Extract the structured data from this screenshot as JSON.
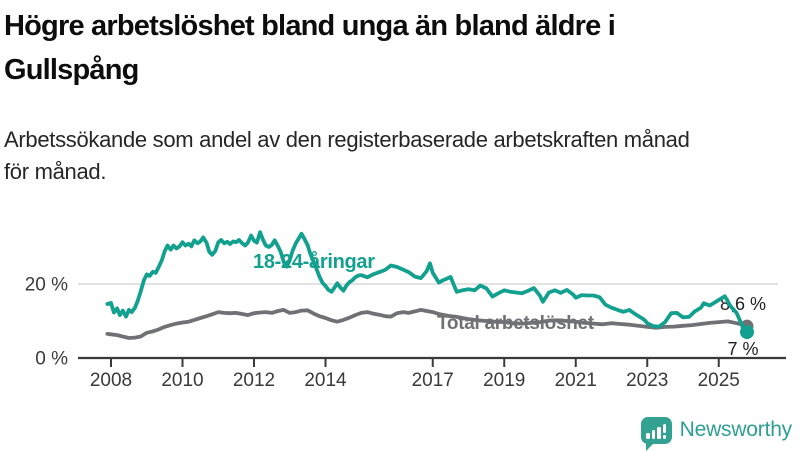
{
  "header": {
    "title": "Högre arbetslöshet bland unga än bland äldre i\nGullspång",
    "subtitle": "Arbetssökande som andel av den registerbaserade arbetskraften månad\nför månad."
  },
  "footer": {
    "brand": "Newsworthy",
    "logo_icon": "newsworthy-speech-bubble-bar-chart-icon"
  },
  "chart_data": {
    "type": "line",
    "title": "Högre arbetslöshet bland unga än bland äldre i Gullspång",
    "subtitle": "Arbetssökande som andel av den registerbaserade arbetskraften månad för månad.",
    "x_unit": "year (monthly data)",
    "xlim": [
      2007.9,
      2026.9
    ],
    "ylim": [
      0,
      36
    ],
    "grid": "horizontal-only",
    "x_ticks": [
      2008,
      2010,
      2012,
      2014,
      2017,
      2019,
      2021,
      2023,
      2025
    ],
    "y_ticks": [
      {
        "value": 0,
        "label": "0 %"
      },
      {
        "value": 20,
        "label": "20 %"
      }
    ],
    "colors": {
      "grid": "#d9d9d9",
      "axis": "#3a3a3a",
      "youth_teal": "#12a08f",
      "total_gray": "#707175",
      "brand_teal": "#33a293"
    },
    "series": [
      {
        "name": "18-24-åringar",
        "color": "#12a08f",
        "end_label": "7 %",
        "end_value": 7.0,
        "end_label_position": "below",
        "points": [
          [
            2007.9,
            14.6
          ],
          [
            2008.0,
            14.9
          ],
          [
            2008.08,
            12.3
          ],
          [
            2008.17,
            13.4
          ],
          [
            2008.25,
            11.6
          ],
          [
            2008.33,
            12.8
          ],
          [
            2008.42,
            11.2
          ],
          [
            2008.5,
            13.0
          ],
          [
            2008.58,
            12.4
          ],
          [
            2008.67,
            13.6
          ],
          [
            2008.75,
            15.5
          ],
          [
            2008.83,
            18.0
          ],
          [
            2008.92,
            21.0
          ],
          [
            2009.0,
            22.6
          ],
          [
            2009.08,
            22.2
          ],
          [
            2009.17,
            23.3
          ],
          [
            2009.25,
            23.0
          ],
          [
            2009.33,
            24.5
          ],
          [
            2009.42,
            26.4
          ],
          [
            2009.5,
            28.8
          ],
          [
            2009.58,
            30.4
          ],
          [
            2009.67,
            29.3
          ],
          [
            2009.75,
            30.4
          ],
          [
            2009.83,
            29.6
          ],
          [
            2009.92,
            30.2
          ],
          [
            2010.0,
            31.3
          ],
          [
            2010.08,
            30.4
          ],
          [
            2010.17,
            30.9
          ],
          [
            2010.25,
            30.2
          ],
          [
            2010.33,
            31.8
          ],
          [
            2010.42,
            31.0
          ],
          [
            2010.5,
            31.5
          ],
          [
            2010.58,
            32.6
          ],
          [
            2010.67,
            31.2
          ],
          [
            2010.75,
            28.7
          ],
          [
            2010.83,
            27.9
          ],
          [
            2010.92,
            29.0
          ],
          [
            2011.0,
            31.3
          ],
          [
            2011.08,
            31.9
          ],
          [
            2011.17,
            31.0
          ],
          [
            2011.25,
            31.4
          ],
          [
            2011.33,
            30.8
          ],
          [
            2011.42,
            31.5
          ],
          [
            2011.5,
            31.3
          ],
          [
            2011.58,
            31.9
          ],
          [
            2011.67,
            31.0
          ],
          [
            2011.75,
            30.4
          ],
          [
            2011.83,
            31.2
          ],
          [
            2011.92,
            33.1
          ],
          [
            2012.0,
            31.7
          ],
          [
            2012.08,
            31.2
          ],
          [
            2012.17,
            34.0
          ],
          [
            2012.25,
            32.0
          ],
          [
            2012.33,
            30.4
          ],
          [
            2012.42,
            30.0
          ],
          [
            2012.5,
            30.6
          ],
          [
            2012.58,
            31.8
          ],
          [
            2012.67,
            30.2
          ],
          [
            2012.75,
            28.6
          ],
          [
            2012.83,
            26.0
          ],
          [
            2012.92,
            24.7
          ],
          [
            2013.0,
            26.5
          ],
          [
            2013.08,
            29.0
          ],
          [
            2013.17,
            31.0
          ],
          [
            2013.25,
            32.3
          ],
          [
            2013.33,
            33.6
          ],
          [
            2013.42,
            32.0
          ],
          [
            2013.5,
            30.5
          ],
          [
            2013.58,
            28.0
          ],
          [
            2013.67,
            26.0
          ],
          [
            2013.75,
            24.0
          ],
          [
            2013.83,
            22.0
          ],
          [
            2013.92,
            20.3
          ],
          [
            2014.0,
            19.5
          ],
          [
            2014.08,
            18.4
          ],
          [
            2014.17,
            17.9
          ],
          [
            2014.25,
            19.0
          ],
          [
            2014.33,
            20.2
          ],
          [
            2014.42,
            19.0
          ],
          [
            2014.5,
            18.2
          ],
          [
            2014.58,
            19.5
          ],
          [
            2014.67,
            20.5
          ],
          [
            2014.75,
            21.0
          ],
          [
            2014.83,
            21.8
          ],
          [
            2014.92,
            22.3
          ],
          [
            2015.0,
            22.4
          ],
          [
            2015.17,
            21.8
          ],
          [
            2015.33,
            22.6
          ],
          [
            2015.5,
            23.2
          ],
          [
            2015.67,
            23.8
          ],
          [
            2015.83,
            25.0
          ],
          [
            2016.0,
            24.6
          ],
          [
            2016.17,
            23.9
          ],
          [
            2016.33,
            23.2
          ],
          [
            2016.5,
            22.0
          ],
          [
            2016.67,
            21.6
          ],
          [
            2016.83,
            23.5
          ],
          [
            2016.92,
            25.6
          ],
          [
            2017.0,
            23.0
          ],
          [
            2017.17,
            20.4
          ],
          [
            2017.33,
            21.2
          ],
          [
            2017.5,
            21.9
          ],
          [
            2017.67,
            17.9
          ],
          [
            2017.83,
            18.3
          ],
          [
            2018.0,
            18.6
          ],
          [
            2018.17,
            18.3
          ],
          [
            2018.33,
            19.6
          ],
          [
            2018.5,
            18.8
          ],
          [
            2018.67,
            16.6
          ],
          [
            2018.83,
            17.5
          ],
          [
            2019.0,
            18.3
          ],
          [
            2019.17,
            17.9
          ],
          [
            2019.33,
            17.7
          ],
          [
            2019.5,
            17.5
          ],
          [
            2019.67,
            18.2
          ],
          [
            2019.83,
            18.9
          ],
          [
            2020.0,
            16.8
          ],
          [
            2020.08,
            15.2
          ],
          [
            2020.25,
            17.7
          ],
          [
            2020.42,
            18.3
          ],
          [
            2020.58,
            17.6
          ],
          [
            2020.75,
            18.4
          ],
          [
            2020.92,
            17.2
          ],
          [
            2021.0,
            16.3
          ],
          [
            2021.17,
            17.0
          ],
          [
            2021.33,
            16.9
          ],
          [
            2021.5,
            16.9
          ],
          [
            2021.67,
            16.4
          ],
          [
            2021.83,
            14.4
          ],
          [
            2022.0,
            13.6
          ],
          [
            2022.17,
            13.0
          ],
          [
            2022.33,
            12.5
          ],
          [
            2022.5,
            13.0
          ],
          [
            2022.67,
            11.8
          ],
          [
            2022.83,
            10.9
          ],
          [
            2022.92,
            10.3
          ],
          [
            2023.0,
            9.4
          ],
          [
            2023.17,
            8.6
          ],
          [
            2023.33,
            8.5
          ],
          [
            2023.5,
            9.7
          ],
          [
            2023.67,
            12.1
          ],
          [
            2023.83,
            12.2
          ],
          [
            2024.0,
            11.0
          ],
          [
            2024.17,
            11.1
          ],
          [
            2024.33,
            12.6
          ],
          [
            2024.5,
            13.6
          ],
          [
            2024.58,
            14.8
          ],
          [
            2024.75,
            14.2
          ],
          [
            2024.92,
            15.2
          ],
          [
            2025.0,
            15.7
          ],
          [
            2025.17,
            16.7
          ],
          [
            2025.33,
            14.0
          ],
          [
            2025.5,
            12.2
          ],
          [
            2025.58,
            10.4
          ],
          [
            2025.67,
            8.5
          ],
          [
            2025.79,
            7.0
          ]
        ]
      },
      {
        "name": "Total arbetslöshet",
        "color": "#707175",
        "end_label": "8,6 %",
        "end_value": 8.6,
        "end_label_position": "above",
        "points": [
          [
            2007.9,
            6.5
          ],
          [
            2008.0,
            6.4
          ],
          [
            2008.17,
            6.2
          ],
          [
            2008.33,
            5.8
          ],
          [
            2008.5,
            5.4
          ],
          [
            2008.67,
            5.5
          ],
          [
            2008.83,
            5.8
          ],
          [
            2009.0,
            6.8
          ],
          [
            2009.17,
            7.2
          ],
          [
            2009.33,
            7.7
          ],
          [
            2009.5,
            8.4
          ],
          [
            2009.67,
            8.9
          ],
          [
            2009.83,
            9.3
          ],
          [
            2010.0,
            9.6
          ],
          [
            2010.17,
            9.8
          ],
          [
            2010.33,
            10.3
          ],
          [
            2010.5,
            10.8
          ],
          [
            2010.67,
            11.3
          ],
          [
            2010.83,
            11.8
          ],
          [
            2011.0,
            12.4
          ],
          [
            2011.17,
            12.2
          ],
          [
            2011.33,
            12.1
          ],
          [
            2011.5,
            12.2
          ],
          [
            2011.67,
            11.9
          ],
          [
            2011.83,
            11.6
          ],
          [
            2012.0,
            12.1
          ],
          [
            2012.17,
            12.3
          ],
          [
            2012.33,
            12.4
          ],
          [
            2012.5,
            12.2
          ],
          [
            2012.67,
            12.7
          ],
          [
            2012.83,
            13.0
          ],
          [
            2013.0,
            12.2
          ],
          [
            2013.17,
            12.4
          ],
          [
            2013.33,
            12.8
          ],
          [
            2013.5,
            12.9
          ],
          [
            2013.67,
            12.0
          ],
          [
            2013.83,
            11.3
          ],
          [
            2014.0,
            10.8
          ],
          [
            2014.17,
            10.2
          ],
          [
            2014.33,
            9.8
          ],
          [
            2014.5,
            10.3
          ],
          [
            2014.67,
            10.9
          ],
          [
            2014.83,
            11.6
          ],
          [
            2015.0,
            12.2
          ],
          [
            2015.17,
            12.4
          ],
          [
            2015.33,
            12.0
          ],
          [
            2015.5,
            11.7
          ],
          [
            2015.67,
            11.3
          ],
          [
            2015.83,
            11.2
          ],
          [
            2016.0,
            12.1
          ],
          [
            2016.17,
            12.4
          ],
          [
            2016.33,
            12.2
          ],
          [
            2016.5,
            12.6
          ],
          [
            2016.67,
            13.0
          ],
          [
            2016.83,
            12.7
          ],
          [
            2017.0,
            12.4
          ],
          [
            2017.17,
            11.9
          ],
          [
            2017.33,
            11.6
          ],
          [
            2017.5,
            11.3
          ],
          [
            2017.67,
            11.1
          ],
          [
            2017.83,
            10.8
          ],
          [
            2018.0,
            10.5
          ],
          [
            2018.25,
            10.2
          ],
          [
            2018.5,
            10.0
          ],
          [
            2018.75,
            9.8
          ],
          [
            2019.0,
            9.7
          ],
          [
            2019.25,
            9.4
          ],
          [
            2019.5,
            9.3
          ],
          [
            2019.75,
            9.5
          ],
          [
            2020.0,
            9.7
          ],
          [
            2020.25,
            10.1
          ],
          [
            2020.5,
            10.2
          ],
          [
            2020.75,
            10.0
          ],
          [
            2021.0,
            9.8
          ],
          [
            2021.25,
            9.5
          ],
          [
            2021.5,
            9.3
          ],
          [
            2021.75,
            9.1
          ],
          [
            2022.0,
            9.4
          ],
          [
            2022.25,
            9.2
          ],
          [
            2022.5,
            9.0
          ],
          [
            2022.75,
            8.7
          ],
          [
            2023.0,
            8.4
          ],
          [
            2023.25,
            8.2
          ],
          [
            2023.5,
            8.4
          ],
          [
            2023.75,
            8.5
          ],
          [
            2024.0,
            8.7
          ],
          [
            2024.25,
            8.9
          ],
          [
            2024.5,
            9.2
          ],
          [
            2024.75,
            9.5
          ],
          [
            2025.0,
            9.7
          ],
          [
            2025.25,
            9.9
          ],
          [
            2025.5,
            9.4
          ],
          [
            2025.67,
            9.0
          ],
          [
            2025.79,
            8.6
          ]
        ]
      }
    ]
  }
}
